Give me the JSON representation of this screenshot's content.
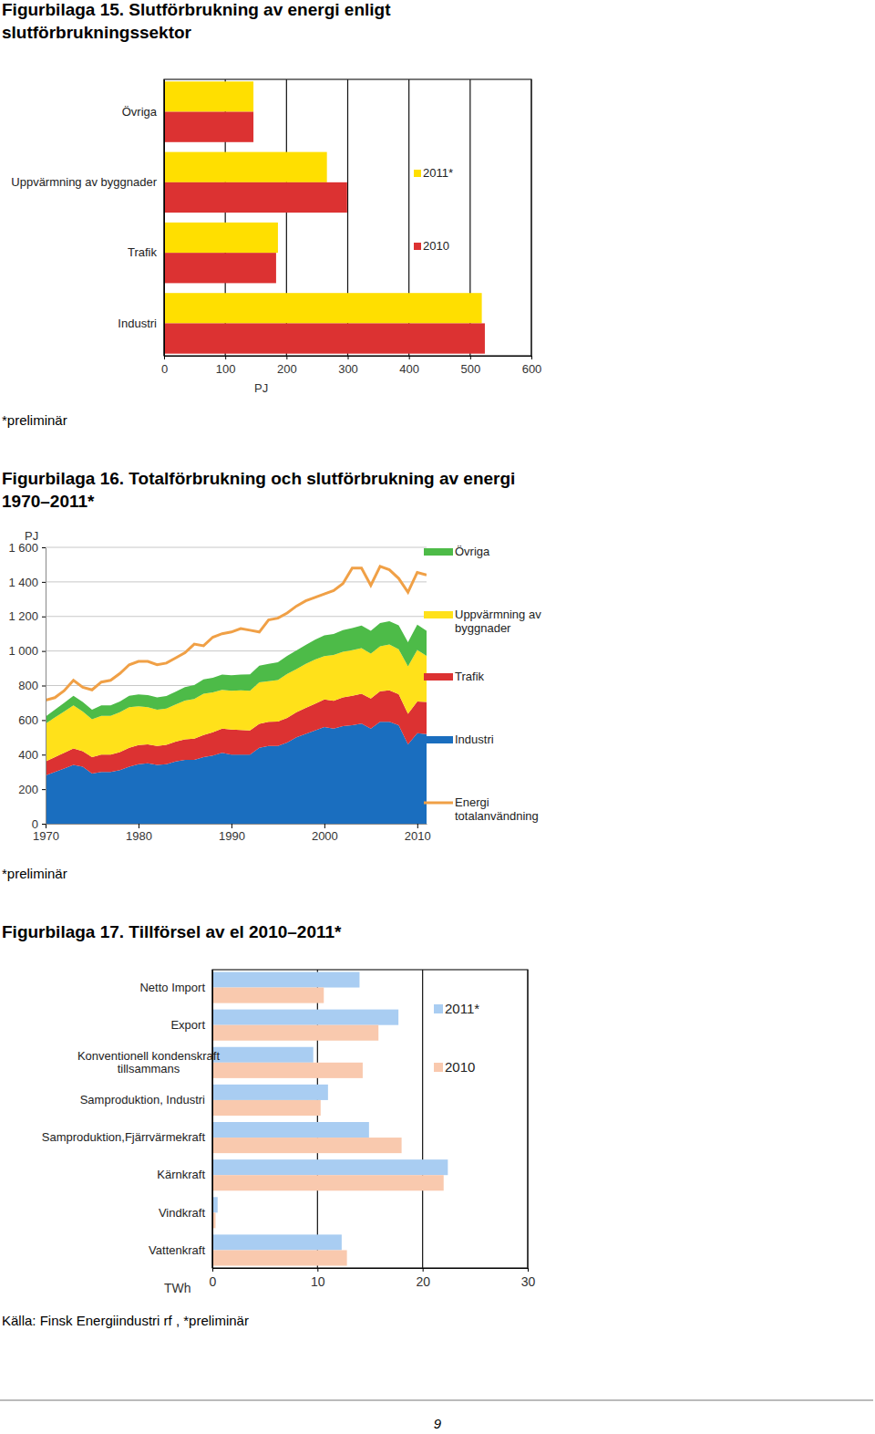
{
  "chart_data": [
    {
      "type": "bar",
      "orientation": "horizontal",
      "title": "Figurbilaga 15. Slutförbrukning av energi enligt\nslutförbrukningssektor",
      "x_label": "PJ",
      "categories": [
        "Övriga",
        "Uppvärmning av byggnader",
        "Trafik",
        "Industri"
      ],
      "series": [
        {
          "name": "2011*",
          "color": "#ffdf00",
          "values": [
            146,
            266,
            186,
            519
          ]
        },
        {
          "name": "2010",
          "color": "#dc3232",
          "values": [
            146,
            299,
            183,
            524
          ]
        }
      ],
      "xlim": [
        0,
        600
      ],
      "xticks": [
        0,
        100,
        200,
        300,
        400,
        500,
        600
      ],
      "grid": true,
      "legend": "right",
      "notes": [
        "*preliminär"
      ]
    },
    {
      "type": "area",
      "stacked": true,
      "title": "Figurbilaga 16. Totalförbrukning och slutförbrukning av energi\n1970–2011*",
      "y_label": "PJ",
      "x": [
        1970,
        1971,
        1972,
        1973,
        1974,
        1975,
        1976,
        1977,
        1978,
        1979,
        1980,
        1981,
        1982,
        1983,
        1984,
        1985,
        1986,
        1987,
        1988,
        1989,
        1990,
        1991,
        1992,
        1993,
        1994,
        1995,
        1996,
        1997,
        1998,
        1999,
        2000,
        2001,
        2002,
        2003,
        2004,
        2005,
        2006,
        2007,
        2008,
        2009,
        2010,
        2011
      ],
      "series": [
        {
          "name": "Övriga",
          "color": "#4dbb48",
          "type": "area",
          "values": [
            40,
            45,
            50,
            55,
            55,
            55,
            60,
            60,
            62,
            65,
            68,
            70,
            72,
            72,
            75,
            78,
            80,
            82,
            85,
            88,
            90,
            92,
            95,
            97,
            100,
            102,
            105,
            108,
            110,
            115,
            120,
            122,
            125,
            128,
            130,
            132,
            135,
            135,
            138,
            140,
            146,
            146
          ]
        },
        {
          "name": "Uppvärmning av\nbyggnader",
          "color": "#ffe11a",
          "type": "area",
          "values": [
            220,
            230,
            240,
            250,
            230,
            220,
            225,
            225,
            230,
            235,
            225,
            215,
            210,
            210,
            215,
            225,
            230,
            240,
            230,
            225,
            225,
            230,
            230,
            240,
            235,
            240,
            255,
            250,
            255,
            255,
            250,
            265,
            265,
            265,
            265,
            260,
            260,
            265,
            260,
            275,
            299,
            266
          ]
        },
        {
          "name": "Trafik",
          "color": "#dc3232",
          "type": "area",
          "values": [
            80,
            85,
            90,
            95,
            90,
            95,
            100,
            100,
            105,
            110,
            110,
            110,
            110,
            112,
            115,
            118,
            122,
            128,
            135,
            140,
            145,
            142,
            140,
            138,
            140,
            142,
            142,
            145,
            150,
            155,
            160,
            162,
            166,
            170,
            172,
            175,
            177,
            182,
            180,
            176,
            183,
            186
          ]
        },
        {
          "name": "Industri",
          "color": "#1a6ebf",
          "type": "area",
          "values": [
            280,
            300,
            320,
            340,
            330,
            290,
            300,
            300,
            310,
            330,
            345,
            350,
            340,
            345,
            360,
            370,
            370,
            385,
            395,
            410,
            400,
            400,
            400,
            440,
            450,
            450,
            470,
            500,
            520,
            540,
            560,
            550,
            565,
            570,
            580,
            550,
            590,
            590,
            570,
            460,
            524,
            519
          ]
        },
        {
          "name": "Energi\ntotalanvändning",
          "color": "#f0a046",
          "type": "line",
          "values": [
            715,
            730,
            770,
            830,
            790,
            775,
            820,
            830,
            870,
            920,
            940,
            940,
            920,
            930,
            960,
            990,
            1040,
            1030,
            1080,
            1100,
            1110,
            1130,
            1120,
            1110,
            1180,
            1190,
            1220,
            1260,
            1290,
            1310,
            1330,
            1350,
            1390,
            1480,
            1480,
            1380,
            1490,
            1470,
            1420,
            1340,
            1455,
            1440
          ]
        }
      ],
      "xlim": [
        1970,
        2011
      ],
      "xticks": [
        1970,
        1980,
        1990,
        2000,
        2010
      ],
      "ylim": [
        0,
        1600
      ],
      "yticks": [
        0,
        200,
        400,
        600,
        800,
        {
          "value": 1000,
          "label": "1 000"
        },
        {
          "value": 1200,
          "label": "1 200"
        },
        {
          "value": 1400,
          "label": "1 400"
        },
        {
          "value": 1600,
          "label": "1 600"
        }
      ],
      "grid": true,
      "legend": "right",
      "notes": [
        "*preliminär"
      ]
    },
    {
      "type": "bar",
      "orientation": "horizontal",
      "title": "Figurbilaga 17. Tillförsel av el 2010–2011*",
      "x_label": "TWh",
      "categories": [
        "Netto Import",
        "Export",
        "Konventionell kondenskraft\ntillsammans",
        "Samproduktion, Industri",
        "Samproduktion,Fjärrvärmekraft",
        "Kärnkraft",
        "Vindkraft",
        "Vattenkraft"
      ],
      "series": [
        {
          "name": "2011*",
          "color": "#a9cdf2",
          "values": [
            14.0,
            17.7,
            9.6,
            11.0,
            14.9,
            22.4,
            0.5,
            12.3
          ]
        },
        {
          "name": "2010",
          "color": "#f9c9ae",
          "values": [
            10.6,
            15.8,
            14.3,
            10.3,
            18.0,
            22.0,
            0.3,
            12.8
          ]
        }
      ],
      "xlim": [
        0,
        30
      ],
      "xticks": [
        0,
        10,
        20,
        30
      ],
      "grid": true,
      "legend": "right",
      "notes": [
        "Källa: Finsk Energiindustri rf , *preliminär"
      ]
    }
  ],
  "page_number": "9"
}
